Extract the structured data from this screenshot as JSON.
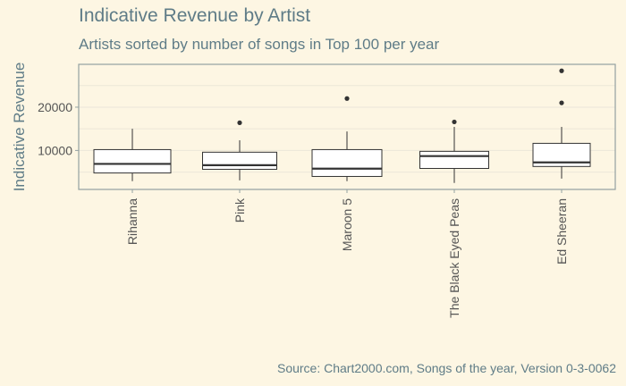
{
  "chart_data": {
    "type": "boxplot",
    "title": "Indicative Revenue by Artist",
    "subtitle": "Artists sorted by number of songs in Top 100 per year",
    "xlabel": "",
    "ylabel": "Indicative Revenue",
    "caption": "Source: Chart2000.com, Songs of the year, Version 0-3-0062",
    "ylim": [
      1000,
      29900
    ],
    "yticks": [
      10000,
      20000
    ],
    "ytick_labels": [
      "10000",
      "20000"
    ],
    "grid": true,
    "categories": [
      "Rihanna",
      "Pink",
      "Maroon 5",
      "The Black Eyed Peas",
      "Ed Sheeran"
    ],
    "boxes": [
      {
        "category": "Rihanna",
        "whisker_low": 2900,
        "q1": 4800,
        "median": 6900,
        "q3": 10200,
        "whisker_high": 15000,
        "outliers": []
      },
      {
        "category": "Pink",
        "whisker_low": 3100,
        "q1": 5650,
        "median": 6600,
        "q3": 9600,
        "whisker_high": 12350,
        "outliers": [
          16400
        ]
      },
      {
        "category": "Maroon 5",
        "whisker_low": 2900,
        "q1": 4000,
        "median": 5800,
        "q3": 10200,
        "whisker_high": 14400,
        "outliers": [
          22000
        ]
      },
      {
        "category": "The Black Eyed Peas",
        "whisker_low": 2500,
        "q1": 5850,
        "median": 8700,
        "q3": 9800,
        "whisker_high": 15450,
        "outliers": [
          16600
        ]
      },
      {
        "category": "Ed Sheeran",
        "whisker_low": 3500,
        "q1": 6300,
        "median": 7250,
        "q3": 11650,
        "whisker_high": 15450,
        "outliers": [
          21000,
          28400
        ]
      }
    ],
    "colors": {
      "background": "#fdf6e3",
      "box_fill": "#ffffff",
      "box_line": "#333333",
      "text": "#5f7c87",
      "grid": "#ece7d8",
      "panel_border": "#93a1a1"
    }
  }
}
